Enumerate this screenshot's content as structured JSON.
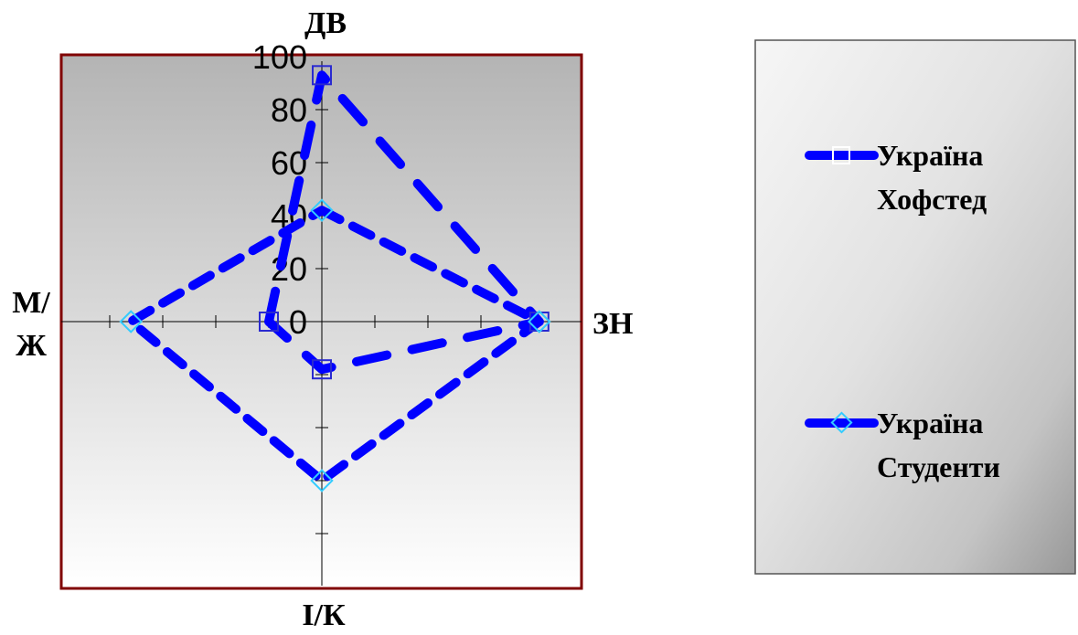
{
  "chart_data": {
    "type": "radar",
    "axes": [
      {
        "id": "top",
        "label": "ДВ"
      },
      {
        "id": "right",
        "label": "ЗН"
      },
      {
        "id": "bottom",
        "label": "І/К"
      },
      {
        "id": "left",
        "label_lines": [
          "М/",
          "Ж"
        ]
      }
    ],
    "radial_range": [
      0,
      100
    ],
    "radial_ticks": [
      "0",
      "20",
      "40",
      "60",
      "80",
      "100"
    ],
    "series": [
      {
        "name_lines": [
          "Україна",
          "Хофстед"
        ],
        "color": "#0000ff",
        "marker": "square",
        "marker_color": "#2a2ad0",
        "points": [
          {
            "axis": "left",
            "value": 20
          },
          {
            "axis": "top",
            "value": 93
          },
          {
            "axis": "right",
            "value": 82
          },
          {
            "axis": "bottom",
            "value": 18
          },
          {
            "axis": "left",
            "value": 20
          }
        ]
      },
      {
        "name_lines": [
          "Україна",
          "Студенти"
        ],
        "color": "#0000ff",
        "marker": "diamond",
        "marker_color": "#33ccff",
        "points": [
          {
            "axis": "top",
            "value": 42
          },
          {
            "axis": "right",
            "value": 82
          },
          {
            "axis": "bottom",
            "value": 60
          },
          {
            "axis": "left",
            "value": 72
          },
          {
            "axis": "top",
            "value": 42
          }
        ]
      }
    ]
  }
}
